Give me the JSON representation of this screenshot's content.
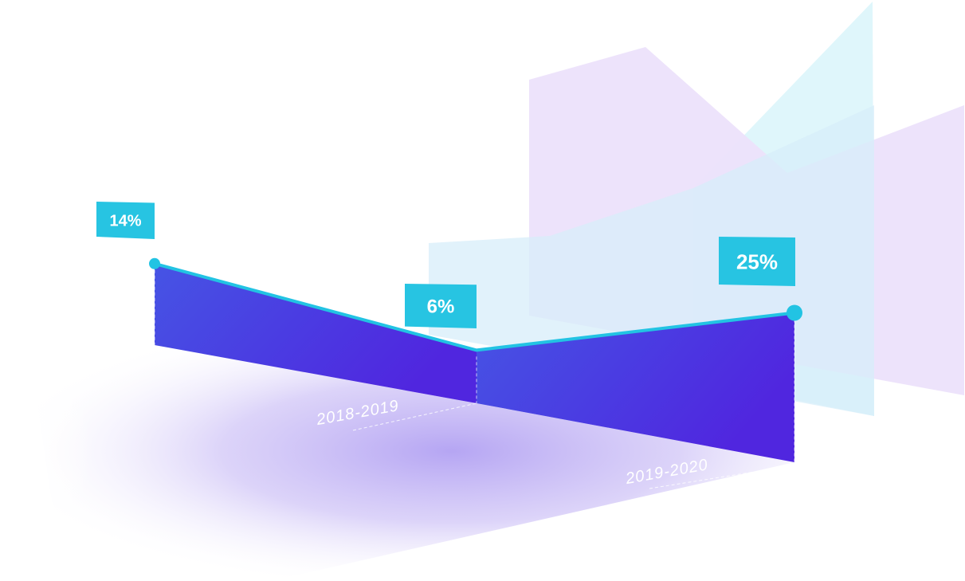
{
  "chart_data": {
    "type": "area",
    "title": "",
    "xlabel": "",
    "ylabel": "",
    "periods": [
      "2018-2019",
      "2019-2020"
    ],
    "points": [
      {
        "value": 14,
        "label": "14%"
      },
      {
        "value": 6,
        "label": "6%"
      },
      {
        "value": 25,
        "label": "25%"
      }
    ],
    "colors": {
      "line": "#22c3e3",
      "label_bg": "#27c4e2",
      "area_top": "#4a35e0",
      "area_bottom": "#4f2bdf",
      "back_lavender": "#e8ddfa",
      "back_cyan": "#d8f5fa"
    },
    "grid": false,
    "legend": "none"
  }
}
